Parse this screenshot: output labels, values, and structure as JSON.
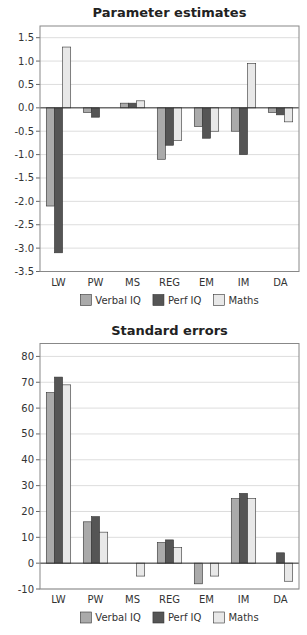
{
  "chart_data": [
    {
      "type": "bar",
      "title": "Parameter estimates",
      "categories": [
        "LW",
        "PW",
        "MS",
        "REG",
        "EM",
        "IM",
        "DA"
      ],
      "series": [
        {
          "name": "Verbal IQ",
          "color": "#aaaaaa",
          "values": [
            -2.1,
            -0.1,
            0.1,
            -1.1,
            -0.4,
            -0.5,
            -0.1
          ]
        },
        {
          "name": "Perf IQ",
          "color": "#555555",
          "values": [
            -3.1,
            -0.2,
            0.1,
            -0.8,
            -0.65,
            -1.0,
            -0.15
          ]
        },
        {
          "name": "Maths",
          "color": "#e8e8e8",
          "values": [
            1.3,
            0.0,
            0.15,
            -0.7,
            -0.5,
            0.95,
            -0.3
          ]
        }
      ],
      "ylim": [
        -3.5,
        1.75
      ],
      "yticks": [
        -3.5,
        {
          "value": -3,
          "label": "-3.0"
        },
        -2.5,
        {
          "value": -2,
          "label": "-2.0"
        },
        -1.5,
        {
          "value": -1,
          "label": "-1.0"
        },
        -0.5,
        {
          "value": 0,
          "label": "0.0"
        },
        0.5,
        {
          "value": 1,
          "label": "1.0"
        },
        1.5
      ],
      "grid": true,
      "legend": "bottom"
    },
    {
      "type": "bar",
      "title": "Standard errors",
      "categories": [
        "LW",
        "PW",
        "MS",
        "REG",
        "EM",
        "IM",
        "DA"
      ],
      "series": [
        {
          "name": "Verbal IQ",
          "color": "#aaaaaa",
          "values": [
            66,
            16,
            0,
            8,
            -8,
            25,
            0
          ]
        },
        {
          "name": "Perf IQ",
          "color": "#555555",
          "values": [
            72,
            18,
            0,
            9,
            0,
            27,
            4
          ]
        },
        {
          "name": "Maths",
          "color": "#e8e8e8",
          "values": [
            69,
            12,
            -5,
            6,
            -5,
            25,
            -7
          ]
        }
      ],
      "ylim": [
        -10,
        85
      ],
      "yticks": [
        -10,
        0,
        10,
        20,
        30,
        40,
        50,
        60,
        70,
        80
      ],
      "grid": true,
      "legend": "bottom"
    }
  ]
}
